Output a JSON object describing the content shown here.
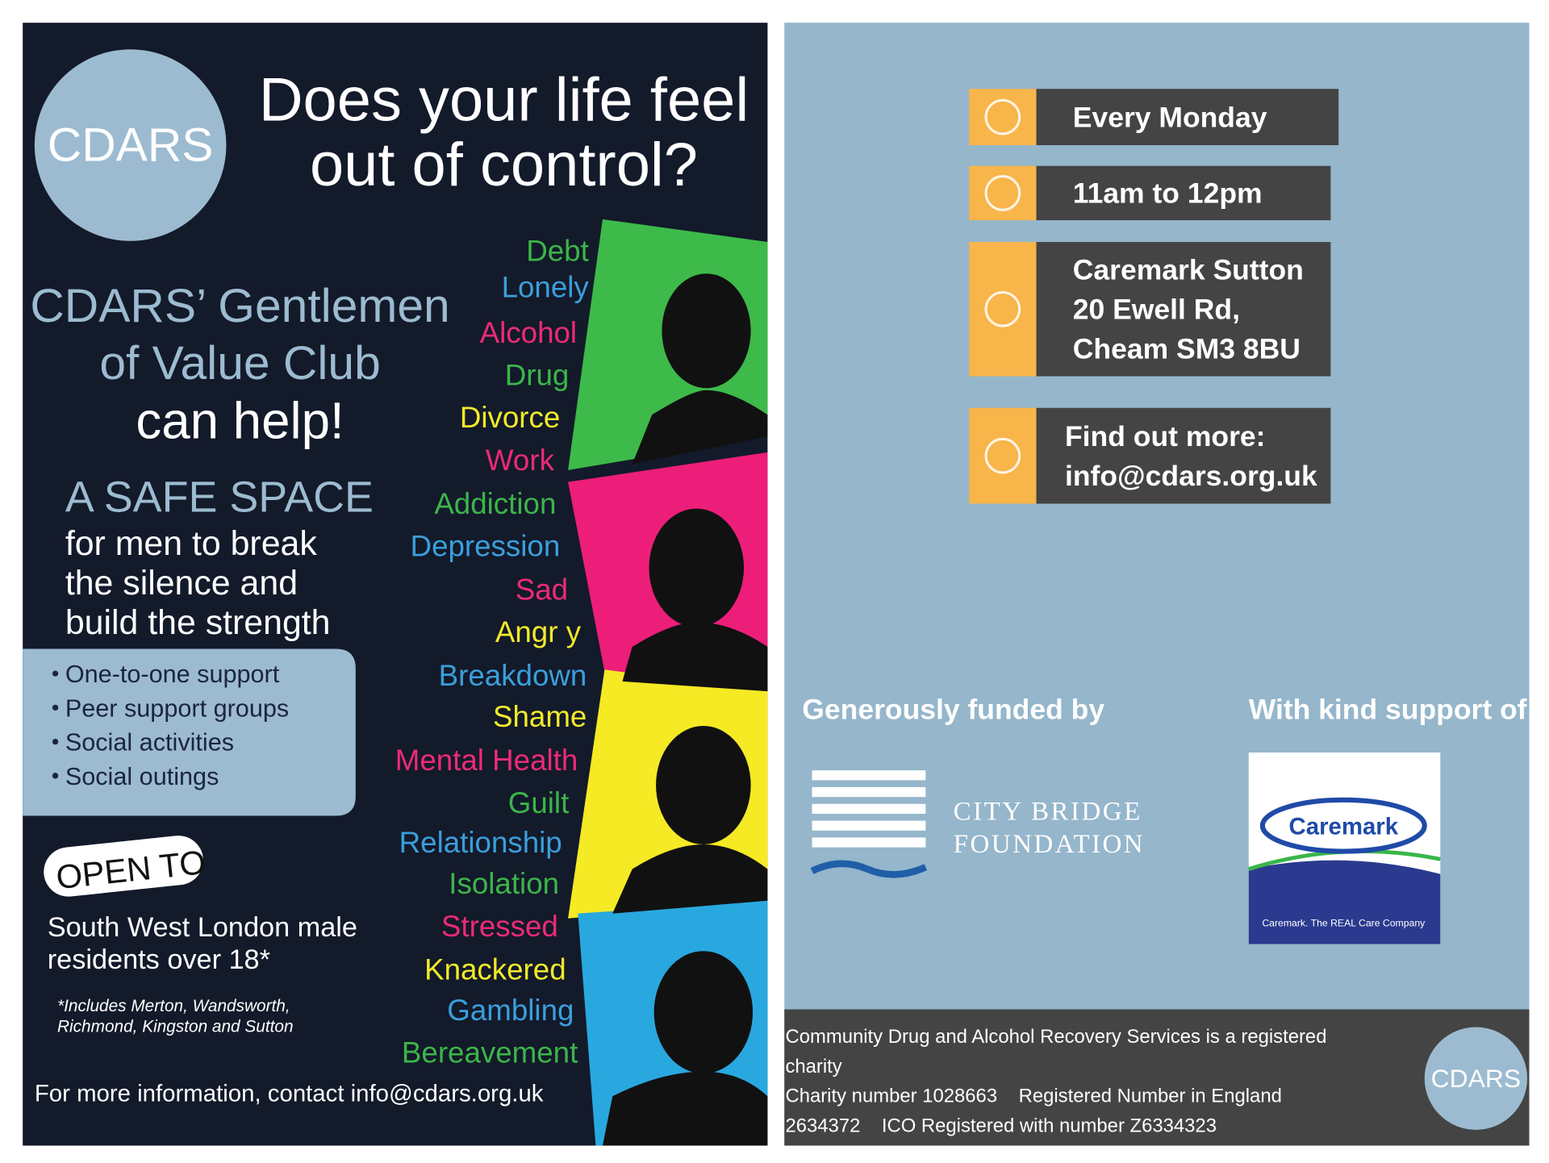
{
  "left": {
    "logo": "CDARS",
    "headline": [
      "Does your life feel",
      "out of control?"
    ],
    "club": [
      "CDARS’ Gentlemen",
      "of Value Club",
      "can help!"
    ],
    "safe_space": {
      "heading": "A SAFE SPACE",
      "lines": [
        "for men to break",
        "the silence and",
        "build the strength"
      ]
    },
    "services": [
      "One-to-one support",
      "Peer support groups",
      "Social activities",
      "Social outings"
    ],
    "open_to": "OPEN TO",
    "eligibility": [
      "South West London male",
      "residents over 18*"
    ],
    "footnote": [
      "*Includes Merton, Wandsworth,",
      "Richmond, Kingston and Sutton"
    ],
    "contact": "For more information, contact info@cdars.org.uk",
    "words": [
      {
        "text": "Debt",
        "color": "#3cb54a"
      },
      {
        "text": "Lonely",
        "color": "#3a9fdc"
      },
      {
        "text": "Alcohol",
        "color": "#ec2a7b"
      },
      {
        "text": "Drug",
        "color": "#3cb54a"
      },
      {
        "text": "Divorce",
        "color": "#f2ea2a"
      },
      {
        "text": "Work",
        "color": "#ec2a7b"
      },
      {
        "text": "Addiction",
        "color": "#3cb54a"
      },
      {
        "text": "Depression",
        "color": "#3a9fdc"
      },
      {
        "text": "Sad",
        "color": "#ec2a7b"
      },
      {
        "text": "Angr y",
        "color": "#f2ea2a"
      },
      {
        "text": "Breakdown",
        "color": "#3a9fdc"
      },
      {
        "text": "Shame",
        "color": "#f2ea2a"
      },
      {
        "text": "Mental Health",
        "color": "#ec2a7b"
      },
      {
        "text": "Guilt",
        "color": "#3cb54a"
      },
      {
        "text": "Relationship",
        "color": "#3a9fdc"
      },
      {
        "text": "Isolation",
        "color": "#3cb54a"
      },
      {
        "text": "Stressed",
        "color": "#ec2a7b"
      },
      {
        "text": "Knackered",
        "color": "#f2ea2a"
      },
      {
        "text": "Gambling",
        "color": "#3a9fdc"
      },
      {
        "text": "Bereavement",
        "color": "#3cb54a"
      }
    ]
  },
  "right": {
    "details": [
      {
        "lines": [
          "Every Monday"
        ]
      },
      {
        "lines": [
          "11am to 12pm"
        ]
      },
      {
        "lines": [
          "Caremark Sutton",
          "20 Ewell Rd,",
          "Cheam SM3 8BU"
        ]
      },
      {
        "lines": [
          "Find out more:",
          "info@cdars.org.uk"
        ]
      }
    ],
    "funded_by": "Generously funded by",
    "support_of": "With kind support of",
    "funder": [
      "CITY BRIDGE",
      "FOUNDATION"
    ],
    "supporter": {
      "name": "Caremark",
      "tagline": "Caremark. The REAL Care Company"
    },
    "footer": [
      "Community Drug and Alcohol Recovery Services is a registered",
      "charity",
      "Charity number 1028663    Registered Number in England",
      "2634372    ICO Registered with number Z6334323"
    ],
    "logo": "CDARS"
  }
}
